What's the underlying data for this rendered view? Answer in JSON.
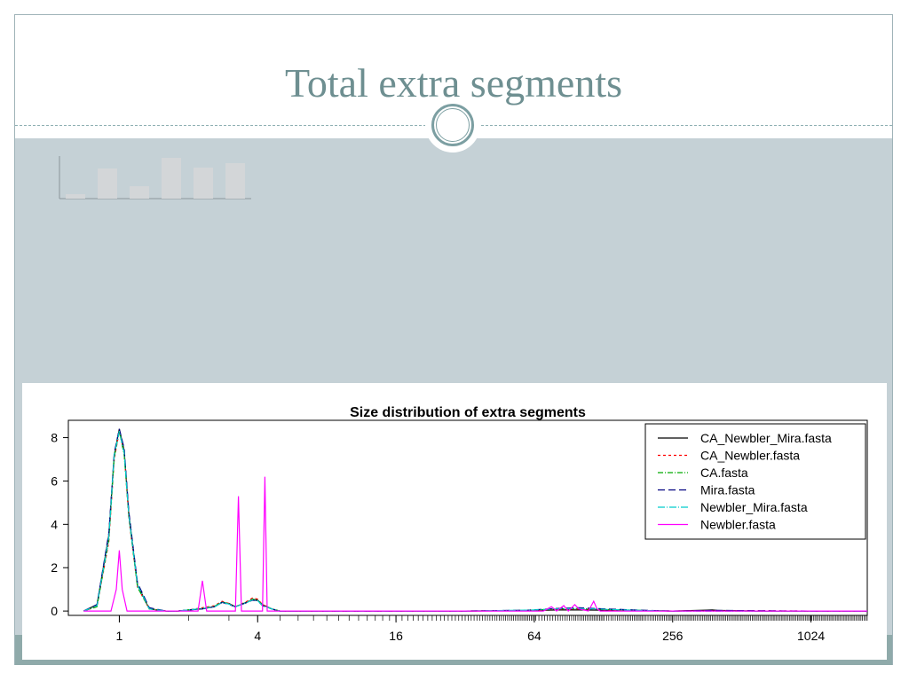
{
  "slide": {
    "title": "Total extra segments",
    "colors": {
      "title": "#6e8f91",
      "body_bg": "#c5d1d6",
      "accent": "#8faaaa"
    }
  },
  "decor": {
    "ornament_icon": "circle-ornament-icon",
    "placeholder_icon": "bar-chart-placeholder-icon"
  },
  "chart_data": {
    "type": "line",
    "title": "Size distribution of extra segments",
    "xlabel": "",
    "ylabel": "",
    "x_scale": "log2",
    "x_ticks": [
      1,
      4,
      16,
      64,
      256,
      1024
    ],
    "y_ticks": [
      0,
      2,
      4,
      6,
      8
    ],
    "xlim": [
      0.6,
      1800
    ],
    "ylim": [
      -0.2,
      8.8
    ],
    "legend_position": "top-right",
    "grid": false,
    "series": [
      {
        "name": "CA_Newbler_Mira.fasta",
        "color": "#000000",
        "dash": "",
        "x": [
          0.7,
          0.8,
          0.9,
          0.95,
          1,
          1.05,
          1.1,
          1.2,
          1.35,
          1.6,
          1.8,
          2.0,
          2.3,
          2.6,
          2.8,
          3.0,
          3.2,
          3.6,
          3.8,
          4.0,
          4.2,
          4.6,
          5,
          8,
          16,
          32,
          60,
          80,
          100,
          130,
          200,
          256,
          360,
          380,
          400,
          600,
          1024,
          1800
        ],
        "y": [
          0,
          0.3,
          3.5,
          7.2,
          8.4,
          7.4,
          4.5,
          1.2,
          0.1,
          0,
          0,
          0.05,
          0.1,
          0.2,
          0.4,
          0.35,
          0.2,
          0.4,
          0.55,
          0.5,
          0.3,
          0.1,
          0,
          0,
          0,
          0,
          0.02,
          0.05,
          0.05,
          0.04,
          0.02,
          0,
          0.04,
          0.05,
          0.03,
          0,
          0,
          0
        ]
      },
      {
        "name": "CA_Newbler.fasta",
        "color": "#ff0000",
        "dash": "3,3",
        "x": [
          0.7,
          0.8,
          0.9,
          0.95,
          1,
          1.05,
          1.1,
          1.2,
          1.35,
          1.6,
          1.8,
          2.0,
          2.3,
          2.6,
          2.8,
          3.0,
          3.2,
          3.6,
          3.8,
          4.0,
          4.2,
          4.6,
          5,
          8,
          16,
          32,
          60,
          80,
          100,
          130,
          200,
          256,
          400,
          1024,
          1800
        ],
        "y": [
          0,
          0.2,
          3.2,
          7.0,
          8.3,
          7.3,
          4.3,
          1.1,
          0.1,
          0,
          0,
          0.05,
          0.15,
          0.25,
          0.45,
          0.35,
          0.2,
          0.45,
          0.6,
          0.55,
          0.3,
          0.1,
          0,
          0,
          0,
          0,
          0.03,
          0.08,
          0.1,
          0.06,
          0.02,
          0,
          0.02,
          0,
          0
        ]
      },
      {
        "name": "CA.fasta",
        "color": "#00aa00",
        "dash": "6,2,1,2",
        "x": [
          0.7,
          0.8,
          0.9,
          0.95,
          1,
          1.05,
          1.1,
          1.2,
          1.35,
          1.6,
          1.8,
          2.0,
          2.3,
          2.6,
          2.8,
          3.0,
          3.2,
          3.6,
          3.8,
          4.0,
          4.2,
          4.6,
          5,
          8,
          16,
          32,
          60,
          80,
          100,
          130,
          200,
          256,
          1024,
          1800
        ],
        "y": [
          0,
          0.2,
          3.3,
          7.1,
          8.3,
          7.2,
          4.4,
          1.1,
          0.1,
          0,
          0,
          0.05,
          0.12,
          0.22,
          0.42,
          0.33,
          0.2,
          0.42,
          0.55,
          0.5,
          0.28,
          0.1,
          0,
          0,
          0,
          0,
          0.03,
          0.1,
          0.12,
          0.08,
          0.02,
          0,
          0,
          0
        ]
      },
      {
        "name": "Mira.fasta",
        "color": "#000080",
        "dash": "8,4",
        "x": [
          0.7,
          0.8,
          0.9,
          0.95,
          1,
          1.05,
          1.1,
          1.2,
          1.35,
          1.6,
          1.8,
          2.0,
          2.3,
          2.6,
          2.8,
          3.0,
          3.2,
          3.6,
          3.8,
          4.0,
          4.2,
          4.6,
          5,
          8,
          16,
          32,
          60,
          80,
          100,
          130,
          200,
          256,
          400,
          1024,
          1800
        ],
        "y": [
          0,
          0.3,
          3.6,
          7.3,
          8.4,
          7.5,
          4.6,
          1.3,
          0.15,
          0,
          0,
          0.05,
          0.1,
          0.2,
          0.4,
          0.3,
          0.2,
          0.4,
          0.5,
          0.48,
          0.25,
          0.1,
          0,
          0,
          0,
          0,
          0.04,
          0.12,
          0.15,
          0.1,
          0.03,
          0,
          0.03,
          0,
          0
        ]
      },
      {
        "name": "Newbler_Mira.fasta",
        "color": "#00cccc",
        "dash": "8,2,1,2",
        "x": [
          0.7,
          0.8,
          0.9,
          0.95,
          1,
          1.05,
          1.1,
          1.2,
          1.35,
          1.6,
          1.8,
          2.0,
          2.3,
          2.6,
          2.8,
          3.0,
          3.2,
          3.6,
          3.8,
          4.0,
          4.2,
          4.6,
          5,
          8,
          16,
          32,
          60,
          80,
          100,
          130,
          200,
          256,
          1024,
          1800
        ],
        "y": [
          0,
          0.25,
          3.4,
          7.2,
          8.3,
          7.3,
          4.4,
          1.2,
          0.1,
          0,
          0,
          0.05,
          0.12,
          0.2,
          0.4,
          0.32,
          0.2,
          0.4,
          0.52,
          0.48,
          0.26,
          0.1,
          0,
          0,
          0,
          0,
          0.04,
          0.1,
          0.12,
          0.08,
          0.02,
          0,
          0,
          0
        ]
      },
      {
        "name": "Newbler.fasta",
        "color": "#ff00ff",
        "dash": "",
        "x": [
          0.7,
          0.92,
          0.97,
          1,
          1.03,
          1.08,
          2.0,
          2.2,
          2.3,
          2.4,
          2.6,
          3.0,
          3.2,
          3.3,
          3.4,
          3.6,
          4.0,
          4.2,
          4.3,
          4.4,
          4.6,
          8,
          16,
          32,
          70,
          76,
          80,
          86,
          90,
          96,
          100,
          110,
          116,
          120,
          124,
          130,
          200,
          1024,
          1800
        ],
        "y": [
          0,
          0,
          1.0,
          2.8,
          1.0,
          0,
          0,
          0,
          1.4,
          0,
          0,
          0,
          0,
          5.3,
          0,
          0,
          0,
          0,
          6.2,
          0,
          0,
          0,
          0,
          0,
          0,
          0.2,
          0,
          0.25,
          0,
          0.3,
          0.1,
          0,
          0.45,
          0.1,
          0,
          0,
          0,
          0,
          0
        ]
      }
    ]
  }
}
